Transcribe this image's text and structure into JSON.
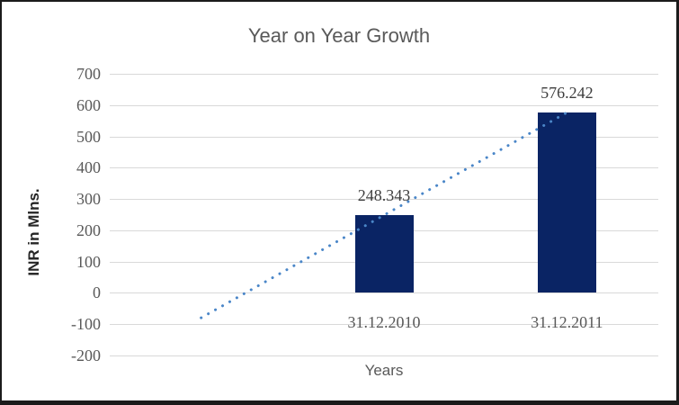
{
  "chart_data": {
    "type": "bar",
    "title": "Year on Year Growth",
    "categories": [
      "",
      "31.12.2010",
      "31.12.2011"
    ],
    "values": [
      null,
      248.343,
      576.242
    ],
    "data_labels": [
      "",
      "248.343",
      "576.242"
    ],
    "xlabel": "Years",
    "ylabel": "INR in Mlns.",
    "ylim": [
      -200,
      700
    ],
    "ytick_step": 100,
    "grid": true,
    "legend": false,
    "colors": {
      "bar": "#0a2464",
      "trendline": "#4a86c8",
      "gridline": "#d9d9d9",
      "tick_text": "#595959",
      "data_label_text": "#3d3d3d",
      "title_text": "#595959"
    },
    "trendline": {
      "style": "dotted",
      "from": {
        "slot": 0,
        "value": -79.556
      },
      "to": {
        "slot": 2,
        "value": 576.242
      }
    }
  }
}
